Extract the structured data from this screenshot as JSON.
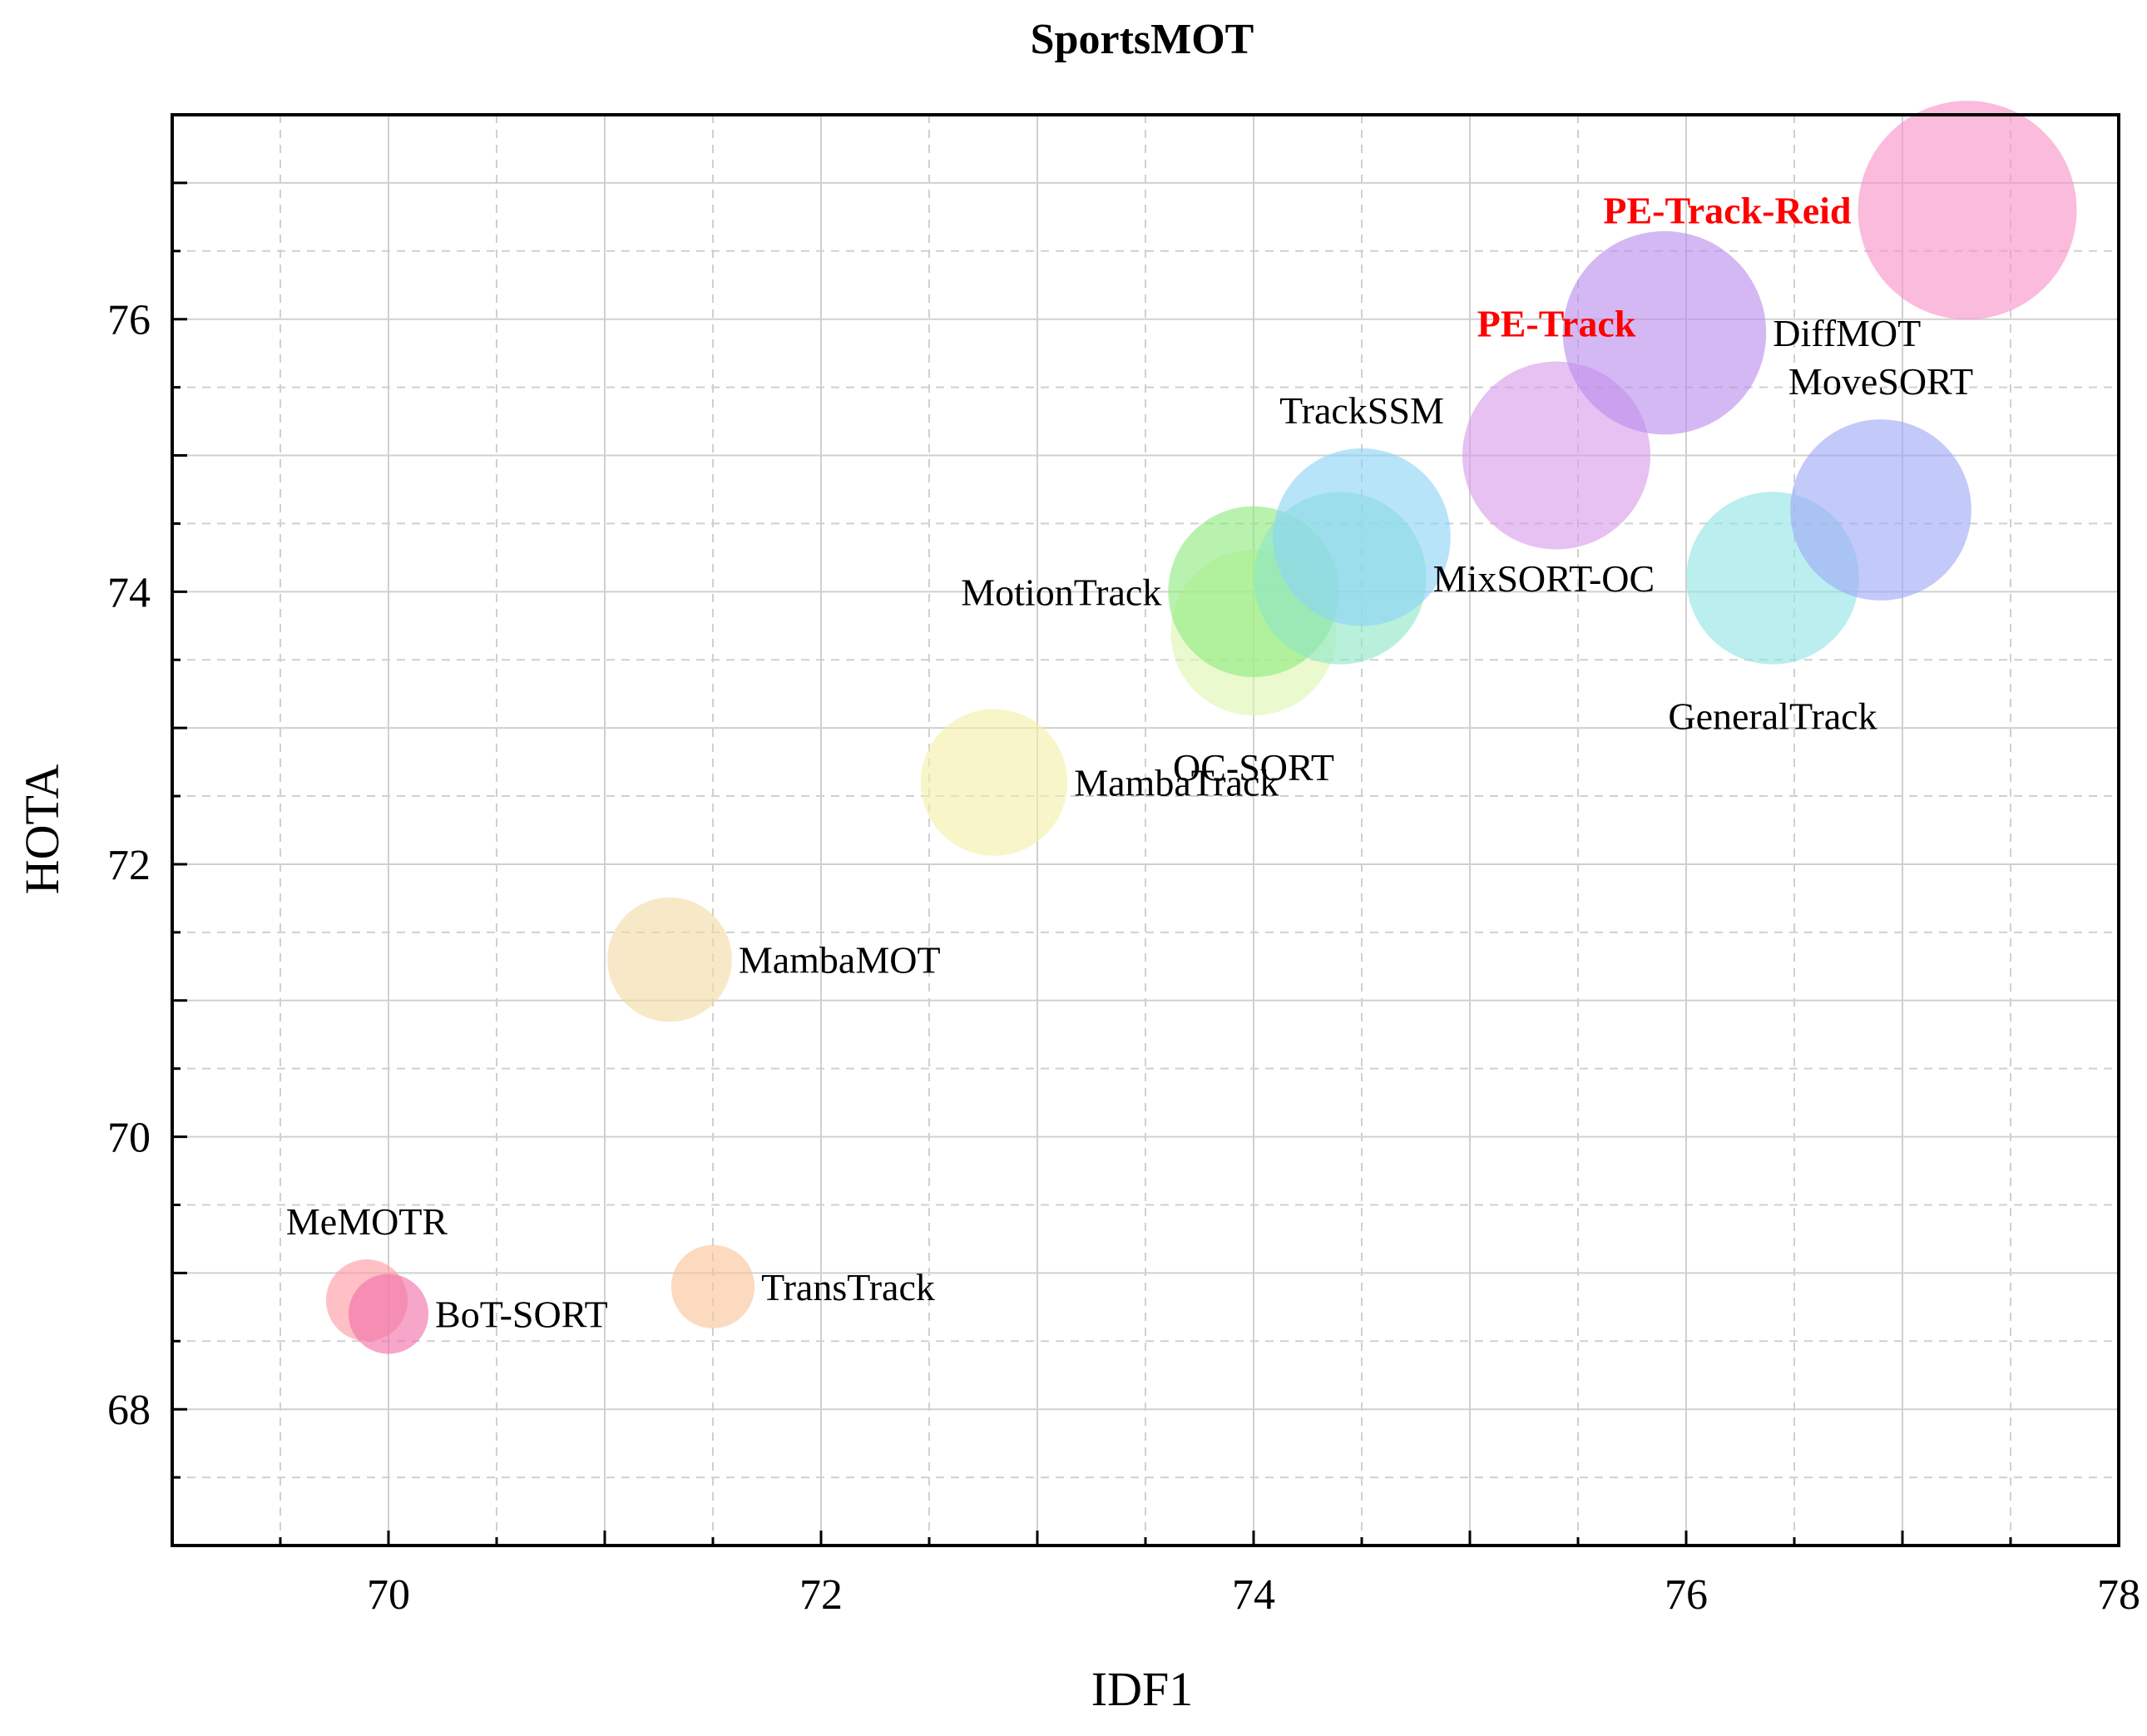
{
  "chart_data": {
    "type": "scatter",
    "title": "SportsMOT",
    "xlabel": "IDF1",
    "ylabel": "HOTA",
    "xlim": [
      69,
      78
    ],
    "ylim": [
      67,
      77.5
    ],
    "x_ticks": [
      "70",
      "72",
      "74",
      "76",
      "78"
    ],
    "y_ticks": [
      "68",
      "70",
      "72",
      "74",
      "76"
    ],
    "grid": true,
    "points": [
      {
        "label": "MeMOTR",
        "x": 69.9,
        "y": 68.8,
        "color": "#ff9aa2",
        "highlight": false,
        "label_pos": "above"
      },
      {
        "label": "BoT-SORT",
        "x": 70.0,
        "y": 68.7,
        "color": "#f06fa8",
        "highlight": false,
        "label_pos": "right"
      },
      {
        "label": "TransTrack",
        "x": 71.5,
        "y": 68.9,
        "color": "#f9c49a",
        "highlight": false,
        "label_pos": "right"
      },
      {
        "label": "MambaMOT",
        "x": 71.3,
        "y": 71.3,
        "color": "#f2dca6",
        "highlight": false,
        "label_pos": "right"
      },
      {
        "label": "MambaTrack",
        "x": 72.8,
        "y": 72.6,
        "color": "#f3efa8",
        "highlight": false,
        "label_pos": "right"
      },
      {
        "label": "OC-SORT",
        "x": 74.0,
        "y": 73.7,
        "color": "#dff5b0",
        "highlight": false,
        "label_pos": "below"
      },
      {
        "label": "MotionTrack",
        "x": 74.0,
        "y": 74.0,
        "color": "#8eea7e",
        "highlight": false,
        "label_pos": "left"
      },
      {
        "label": "MixSORT-OC",
        "x": 74.4,
        "y": 74.1,
        "color": "#8ee6c6",
        "highlight": false,
        "label_pos": "right"
      },
      {
        "label": "TrackSSM",
        "x": 74.5,
        "y": 74.4,
        "color": "#8dd3f7",
        "highlight": false,
        "label_pos": "above"
      },
      {
        "label": "PE-Track",
        "x": 75.4,
        "y": 75.0,
        "color": "#d79be8",
        "highlight": true,
        "label_pos": "above"
      },
      {
        "label": "DiffMOT",
        "x": 75.9,
        "y": 75.9,
        "color": "#b98cee",
        "highlight": false,
        "label_pos": "right"
      },
      {
        "label": "GeneralTrack",
        "x": 76.4,
        "y": 74.1,
        "color": "#92e4e4",
        "highlight": false,
        "label_pos": "below"
      },
      {
        "label": "MoveSORT",
        "x": 76.9,
        "y": 74.6,
        "color": "#9ea8f6",
        "highlight": false,
        "label_pos": "above"
      },
      {
        "label": "PE-Track-Reid",
        "x": 77.3,
        "y": 76.8,
        "color": "#f992c8",
        "highlight": true,
        "label_pos": "left"
      }
    ]
  }
}
